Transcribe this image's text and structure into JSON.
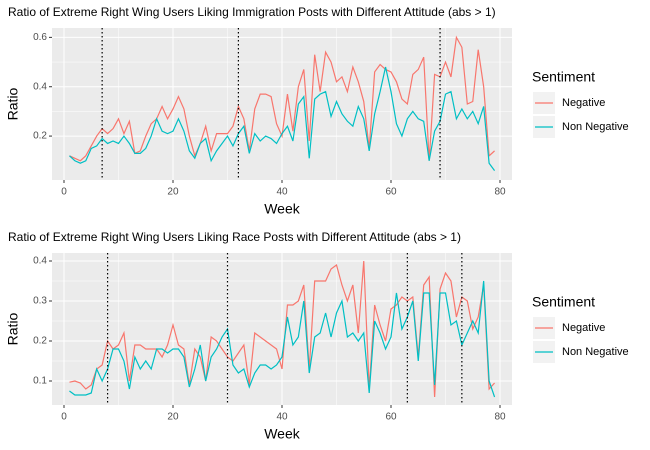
{
  "chart_data": [
    {
      "type": "line",
      "title": "Ratio of Extreme Right Wing Users Liking Immigration Posts with Different Attitude  (abs > 1)",
      "xlabel": "Week",
      "ylabel": "Ratio",
      "legend_title": "Sentiment",
      "x": [
        1,
        2,
        3,
        4,
        5,
        6,
        7,
        8,
        9,
        10,
        11,
        12,
        13,
        14,
        15,
        16,
        17,
        18,
        19,
        20,
        21,
        22,
        23,
        24,
        25,
        26,
        27,
        28,
        29,
        30,
        31,
        32,
        33,
        34,
        35,
        36,
        37,
        38,
        39,
        40,
        41,
        42,
        43,
        44,
        45,
        46,
        47,
        48,
        49,
        50,
        51,
        52,
        53,
        54,
        55,
        56,
        57,
        58,
        59,
        60,
        61,
        62,
        63,
        64,
        65,
        66,
        67,
        68,
        69,
        70,
        71,
        72,
        73,
        74,
        75,
        76,
        77,
        78,
        79
      ],
      "series": [
        {
          "name": "Negative",
          "color": "#F8766D",
          "values": [
            0.12,
            0.11,
            0.1,
            0.12,
            0.16,
            0.2,
            0.23,
            0.21,
            0.23,
            0.27,
            0.21,
            0.26,
            0.13,
            0.14,
            0.2,
            0.25,
            0.27,
            0.32,
            0.27,
            0.31,
            0.36,
            0.31,
            0.2,
            0.12,
            0.17,
            0.24,
            0.14,
            0.21,
            0.21,
            0.21,
            0.24,
            0.32,
            0.27,
            0.14,
            0.31,
            0.37,
            0.37,
            0.36,
            0.25,
            0.2,
            0.37,
            0.22,
            0.4,
            0.47,
            0.18,
            0.53,
            0.38,
            0.54,
            0.5,
            0.42,
            0.44,
            0.38,
            0.48,
            0.42,
            0.34,
            0.15,
            0.46,
            0.49,
            0.47,
            0.46,
            0.42,
            0.35,
            0.33,
            0.45,
            0.47,
            0.52,
            0.1,
            0.45,
            0.44,
            0.5,
            0.44,
            0.6,
            0.56,
            0.33,
            0.34,
            0.55,
            0.4,
            0.12,
            0.14
          ]
        },
        {
          "name": "Non Negative",
          "color": "#00BFC4",
          "values": [
            0.12,
            0.1,
            0.09,
            0.1,
            0.15,
            0.16,
            0.19,
            0.17,
            0.18,
            0.17,
            0.2,
            0.17,
            0.13,
            0.13,
            0.15,
            0.2,
            0.27,
            0.22,
            0.21,
            0.22,
            0.27,
            0.22,
            0.14,
            0.11,
            0.17,
            0.19,
            0.1,
            0.14,
            0.17,
            0.2,
            0.16,
            0.21,
            0.24,
            0.13,
            0.21,
            0.18,
            0.2,
            0.19,
            0.17,
            0.21,
            0.24,
            0.18,
            0.33,
            0.36,
            0.11,
            0.35,
            0.37,
            0.38,
            0.28,
            0.34,
            0.29,
            0.26,
            0.24,
            0.32,
            0.27,
            0.14,
            0.29,
            0.38,
            0.48,
            0.38,
            0.25,
            0.2,
            0.27,
            0.3,
            0.27,
            0.26,
            0.1,
            0.22,
            0.26,
            0.37,
            0.38,
            0.27,
            0.31,
            0.27,
            0.3,
            0.25,
            0.32,
            0.09,
            0.06
          ]
        }
      ],
      "vlines": [
        7,
        32,
        69
      ],
      "xlim": [
        -2.2,
        82.2
      ],
      "xticks": [
        0,
        20,
        40,
        60,
        80
      ],
      "ylim": [
        0.022,
        0.638
      ],
      "yticks": [
        0.2,
        0.4,
        0.6
      ],
      "grid": true
    },
    {
      "type": "line",
      "title": "Ratio of Extreme Right Wing Users Liking Race Posts with Different Attitude (abs > 1)",
      "xlabel": "Week",
      "ylabel": "Ratio",
      "legend_title": "Sentiment",
      "x": [
        1,
        2,
        3,
        4,
        5,
        6,
        7,
        8,
        9,
        10,
        11,
        12,
        13,
        14,
        15,
        16,
        17,
        18,
        19,
        20,
        21,
        22,
        23,
        24,
        25,
        26,
        27,
        28,
        29,
        30,
        31,
        32,
        33,
        34,
        35,
        36,
        37,
        38,
        39,
        40,
        41,
        42,
        43,
        44,
        45,
        46,
        47,
        48,
        49,
        50,
        51,
        52,
        53,
        54,
        55,
        56,
        57,
        58,
        59,
        60,
        61,
        62,
        63,
        64,
        65,
        66,
        67,
        68,
        69,
        70,
        71,
        72,
        73,
        74,
        75,
        76,
        77,
        78,
        79
      ],
      "series": [
        {
          "name": "Negative",
          "color": "#F8766D",
          "values": [
            0.097,
            0.1,
            0.095,
            0.08,
            0.09,
            0.13,
            0.14,
            0.2,
            0.18,
            0.19,
            0.22,
            0.1,
            0.19,
            0.19,
            0.18,
            0.18,
            0.18,
            0.16,
            0.19,
            0.24,
            0.19,
            0.18,
            0.09,
            0.18,
            0.16,
            0.1,
            0.21,
            0.2,
            0.18,
            0.16,
            0.15,
            0.17,
            0.19,
            0.09,
            0.22,
            0.21,
            0.2,
            0.19,
            0.18,
            0.13,
            0.29,
            0.29,
            0.3,
            0.34,
            0.13,
            0.35,
            0.35,
            0.35,
            0.38,
            0.39,
            0.34,
            0.3,
            0.34,
            0.22,
            0.4,
            0.08,
            0.29,
            0.24,
            0.2,
            0.28,
            0.29,
            0.31,
            0.3,
            0.31,
            0.16,
            0.34,
            0.36,
            0.06,
            0.33,
            0.37,
            0.35,
            0.26,
            0.31,
            0.3,
            0.23,
            0.26,
            0.34,
            0.08,
            0.095
          ]
        },
        {
          "name": "Non Negative",
          "color": "#00BFC4",
          "values": [
            0.075,
            0.065,
            0.065,
            0.065,
            0.07,
            0.13,
            0.1,
            0.13,
            0.18,
            0.18,
            0.15,
            0.08,
            0.16,
            0.13,
            0.15,
            0.13,
            0.18,
            0.18,
            0.17,
            0.18,
            0.18,
            0.16,
            0.085,
            0.13,
            0.19,
            0.1,
            0.16,
            0.18,
            0.21,
            0.23,
            0.14,
            0.12,
            0.13,
            0.085,
            0.12,
            0.14,
            0.14,
            0.13,
            0.14,
            0.16,
            0.26,
            0.19,
            0.21,
            0.3,
            0.12,
            0.21,
            0.22,
            0.27,
            0.21,
            0.27,
            0.3,
            0.21,
            0.22,
            0.2,
            0.22,
            0.07,
            0.25,
            0.22,
            0.18,
            0.21,
            0.32,
            0.23,
            0.26,
            0.3,
            0.15,
            0.32,
            0.32,
            0.09,
            0.32,
            0.32,
            0.24,
            0.25,
            0.19,
            0.22,
            0.25,
            0.22,
            0.35,
            0.1,
            0.06
          ]
        }
      ],
      "vlines": [
        8,
        30,
        63,
        73
      ],
      "xlim": [
        -2.2,
        82.2
      ],
      "xticks": [
        0,
        20,
        40,
        60,
        80
      ],
      "ylim": [
        0.04,
        0.42
      ],
      "yticks": [
        0.1,
        0.2,
        0.3,
        0.4
      ],
      "grid": true
    }
  ]
}
